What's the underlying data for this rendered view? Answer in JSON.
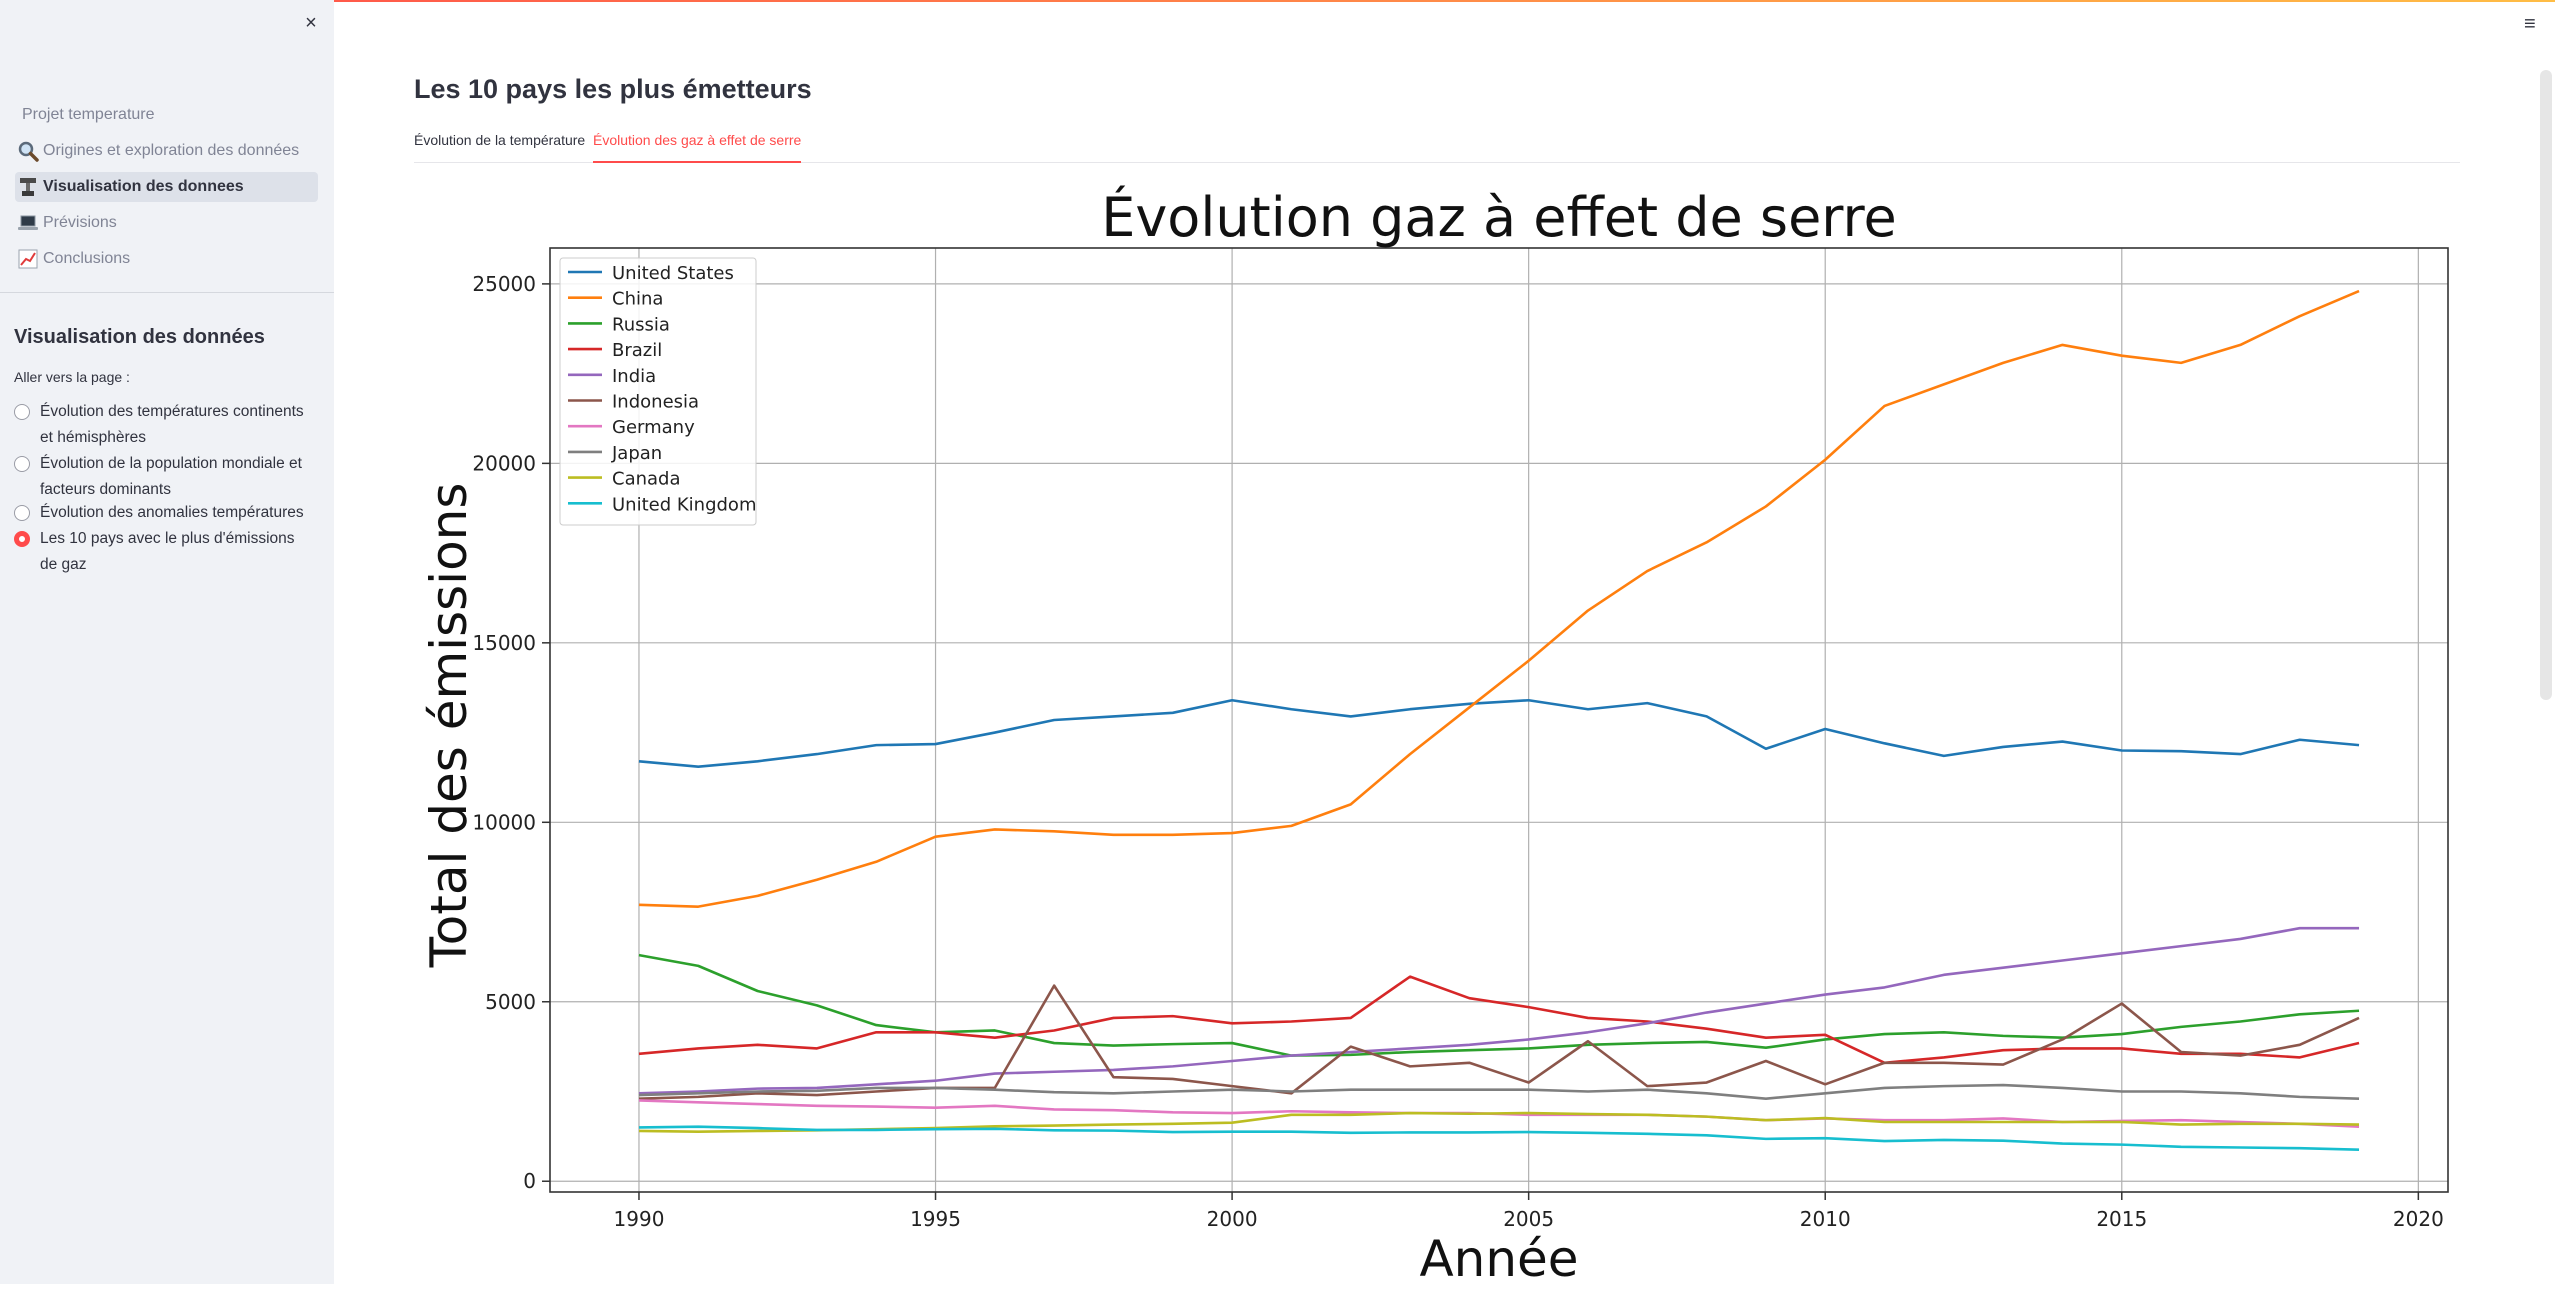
{
  "sidebar": {
    "close_label": "×",
    "nav_header": "Projet temperature",
    "nav_items": [
      {
        "label": "Origines et exploration des données",
        "icon": "magnifier-icon",
        "active": false
      },
      {
        "label": "Visualisation des donnees",
        "icon": "robot-arm-icon",
        "active": true
      },
      {
        "label": "Prévisions",
        "icon": "laptop-icon",
        "active": false
      },
      {
        "label": "Conclusions",
        "icon": "chart-increasing-icon",
        "active": false
      }
    ],
    "section_title": "Visualisation des données",
    "radio_label": "Aller vers la page :",
    "radio_options": [
      {
        "label": "Évolution des températures continents et hémisphères",
        "checked": false
      },
      {
        "label": "Évolution de la population mondiale et facteurs dominants",
        "checked": false
      },
      {
        "label": "Évolution des anomalies températures",
        "checked": false
      },
      {
        "label": "Les 10 pays avec le plus d'émissions de gaz",
        "checked": true
      }
    ]
  },
  "main": {
    "menu_label": "≡",
    "title": "Les 10 pays les plus émetteurs",
    "tabs": [
      {
        "label": "Évolution de la température",
        "active": false
      },
      {
        "label": "Évolution des gaz à effet de serre",
        "active": true
      }
    ]
  },
  "chart_data": {
    "type": "line",
    "title": "Évolution gaz à effet de serre",
    "xlabel": "Année",
    "ylabel": "Total des émissions",
    "xlim": [
      1988.5,
      2020.5
    ],
    "ylim": [
      -300,
      26000
    ],
    "xticks": [
      1990,
      1995,
      2000,
      2005,
      2010,
      2015,
      2020
    ],
    "yticks": [
      0,
      5000,
      10000,
      15000,
      20000,
      25000
    ],
    "grid": true,
    "legend_position": "top-left",
    "x": [
      1990,
      1991,
      1992,
      1993,
      1994,
      1995,
      1996,
      1997,
      1998,
      1999,
      2000,
      2001,
      2002,
      2003,
      2004,
      2005,
      2006,
      2007,
      2008,
      2009,
      2010,
      2011,
      2012,
      2013,
      2014,
      2015,
      2016,
      2017,
      2018,
      2019
    ],
    "series": [
      {
        "name": "United States",
        "color": "#1f77b4",
        "values": [
          11700,
          11550,
          11700,
          11900,
          12150,
          12180,
          12500,
          12850,
          12950,
          13050,
          13400,
          13150,
          12950,
          13150,
          13300,
          13400,
          13150,
          13320,
          12950,
          12050,
          12600,
          12200,
          11850,
          12100,
          12250,
          12000,
          11980,
          11900,
          12300,
          12150
        ]
      },
      {
        "name": "China",
        "color": "#ff7f0e",
        "values": [
          7700,
          7650,
          7950,
          8400,
          8900,
          9600,
          9800,
          9750,
          9650,
          9650,
          9700,
          9900,
          10500,
          11900,
          13200,
          14500,
          15900,
          17000,
          17800,
          18800,
          20100,
          21600,
          22200,
          22800,
          23300,
          23000,
          22800,
          23300,
          24100,
          24800
        ]
      },
      {
        "name": "Russia",
        "color": "#2ca02c",
        "values": [
          6300,
          6000,
          5300,
          4900,
          4350,
          4150,
          4200,
          3850,
          3780,
          3820,
          3850,
          3500,
          3520,
          3600,
          3650,
          3700,
          3800,
          3850,
          3880,
          3720,
          3950,
          4100,
          4150,
          4050,
          4000,
          4100,
          4300,
          4450,
          4650,
          4750
        ]
      },
      {
        "name": "Brazil",
        "color": "#d62728",
        "values": [
          3550,
          3700,
          3800,
          3700,
          4150,
          4150,
          4000,
          4200,
          4550,
          4600,
          4400,
          4450,
          4550,
          5700,
          5100,
          4850,
          4550,
          4450,
          4250,
          4000,
          4080,
          3300,
          3450,
          3650,
          3700,
          3700,
          3550,
          3550,
          3450,
          3850
        ]
      },
      {
        "name": "India",
        "color": "#9467bd",
        "values": [
          2450,
          2500,
          2580,
          2600,
          2700,
          2800,
          3000,
          3050,
          3100,
          3200,
          3350,
          3500,
          3600,
          3700,
          3800,
          3950,
          4150,
          4400,
          4700,
          4950,
          5200,
          5400,
          5750,
          5950,
          6150,
          6350,
          6550,
          6750,
          7050,
          7050
        ]
      },
      {
        "name": "Indonesia",
        "color": "#8c564b",
        "values": [
          2300,
          2350,
          2450,
          2400,
          2500,
          2600,
          2600,
          5450,
          2900,
          2850,
          2650,
          2450,
          3750,
          3200,
          3300,
          2750,
          3900,
          2650,
          2750,
          3350,
          2700,
          3300,
          3300,
          3250,
          3950,
          4950,
          3600,
          3500,
          3800,
          4550
        ]
      },
      {
        "name": "Germany",
        "color": "#e377c2",
        "values": [
          2250,
          2200,
          2150,
          2100,
          2080,
          2050,
          2100,
          2000,
          1980,
          1920,
          1900,
          1950,
          1920,
          1900,
          1900,
          1850,
          1850,
          1850,
          1800,
          1700,
          1750,
          1700,
          1700,
          1750,
          1650,
          1680,
          1700,
          1650,
          1600,
          1520
        ]
      },
      {
        "name": "Japan",
        "color": "#7f7f7f",
        "values": [
          2400,
          2450,
          2500,
          2520,
          2600,
          2600,
          2550,
          2480,
          2450,
          2500,
          2550,
          2500,
          2550,
          2550,
          2550,
          2550,
          2500,
          2550,
          2450,
          2300,
          2450,
          2600,
          2650,
          2680,
          2600,
          2500,
          2500,
          2450,
          2350,
          2300
        ]
      },
      {
        "name": "Canada",
        "color": "#bcbd22",
        "values": [
          1400,
          1380,
          1400,
          1420,
          1450,
          1480,
          1530,
          1550,
          1580,
          1600,
          1630,
          1850,
          1850,
          1900,
          1880,
          1900,
          1870,
          1850,
          1800,
          1700,
          1760,
          1650,
          1650,
          1650,
          1650,
          1650,
          1580,
          1600,
          1600,
          1580
        ]
      },
      {
        "name": "United Kingdom",
        "color": "#17becf",
        "values": [
          1500,
          1520,
          1480,
          1430,
          1430,
          1450,
          1460,
          1420,
          1410,
          1370,
          1380,
          1380,
          1350,
          1360,
          1360,
          1370,
          1350,
          1320,
          1280,
          1180,
          1200,
          1120,
          1150,
          1130,
          1050,
          1020,
          960,
          940,
          920,
          880
        ]
      }
    ]
  }
}
